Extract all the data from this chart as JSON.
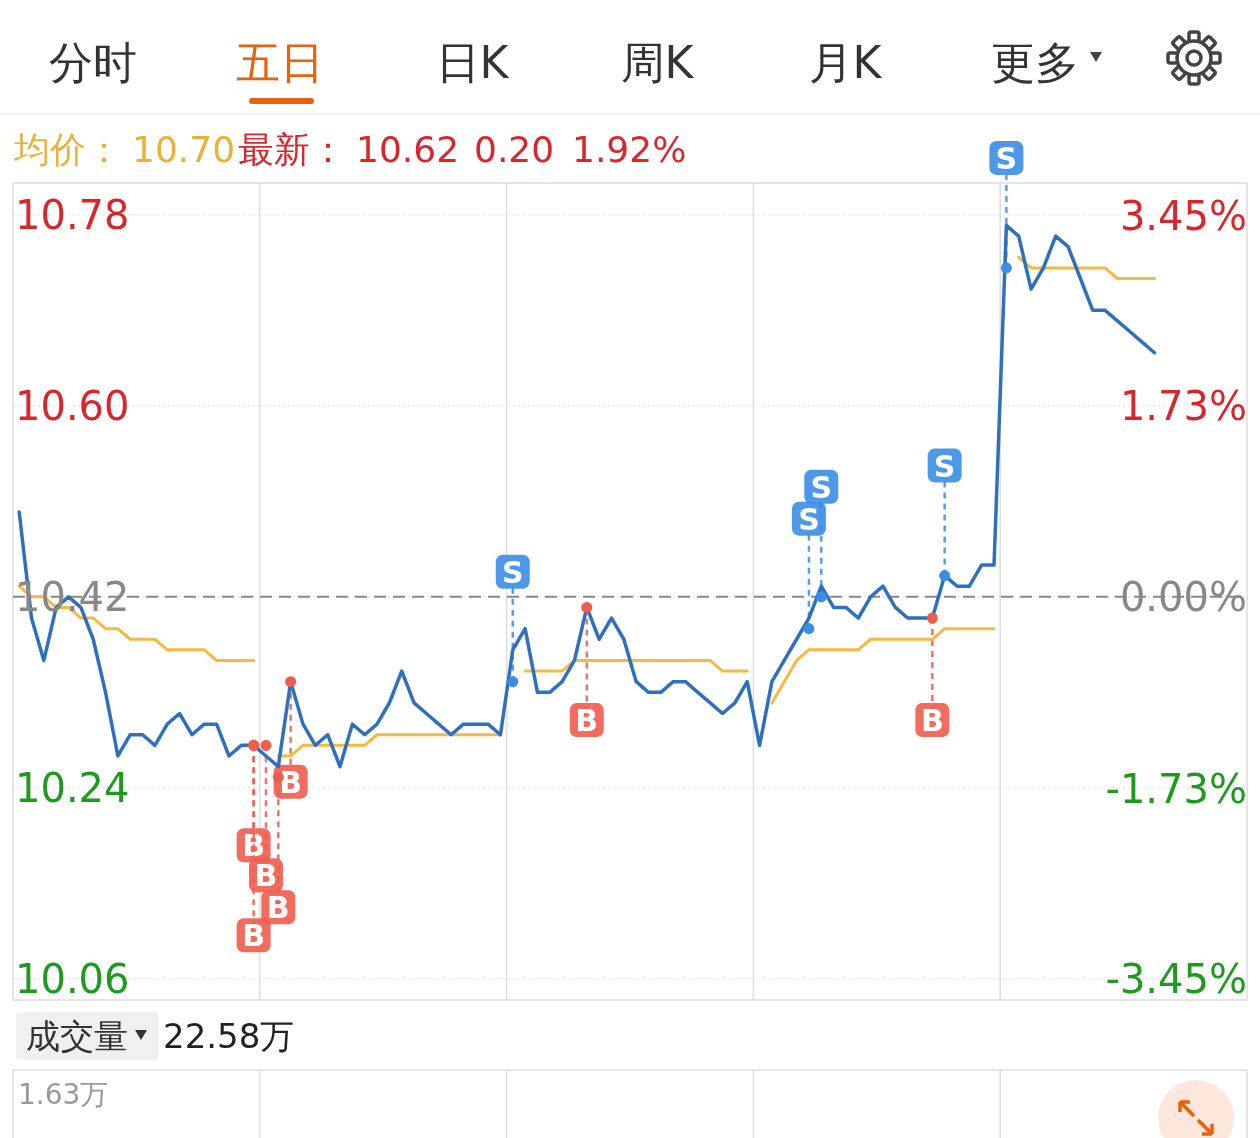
{
  "chart_data": {
    "type": "line",
    "categories": [
      null,
      null,
      null,
      null,
      null,
      null,
      null,
      null,
      null,
      null,
      null,
      null,
      null,
      null,
      null,
      null,
      null,
      null,
      null,
      null,
      null,
      null,
      null,
      null,
      null,
      null,
      null,
      null,
      null,
      null,
      null,
      null,
      null,
      null,
      null,
      null,
      null,
      null,
      null,
      null,
      null,
      null,
      null,
      null,
      null,
      null,
      null,
      null,
      null,
      null,
      null,
      null,
      null,
      null,
      null,
      null,
      null,
      null,
      null,
      null,
      null,
      null,
      null,
      null,
      null,
      null,
      null,
      null,
      null,
      null,
      null,
      null,
      null,
      null,
      null,
      null,
      null,
      null,
      null,
      null,
      null,
      null,
      null,
      null,
      null,
      null,
      null,
      null,
      null,
      null,
      null,
      null,
      null,
      null,
      null,
      null,
      null,
      null,
      null,
      null
    ],
    "series": [
      {
        "color": "#2f6fbf",
        "values": [
          10.5,
          10.4,
          10.36,
          10.41,
          10.42,
          10.41,
          10.38,
          10.33,
          10.27,
          10.29,
          10.29,
          10.28,
          10.3,
          10.31,
          10.29,
          10.3,
          10.3,
          10.27,
          10.28,
          10.28,
          10.27,
          10.26,
          10.34,
          10.3,
          10.28,
          10.29,
          10.26,
          10.3,
          10.29,
          10.3,
          10.32,
          10.35,
          10.32,
          10.31,
          10.3,
          10.29,
          10.3,
          10.3,
          10.3,
          10.29,
          10.37,
          10.39,
          10.33,
          10.33,
          10.34,
          10.36,
          10.41,
          10.38,
          10.4,
          10.38,
          10.34,
          10.33,
          10.33,
          10.34,
          10.34,
          10.33,
          10.32,
          10.31,
          10.32,
          10.34,
          10.28,
          10.34,
          10.36,
          10.38,
          10.4,
          10.43,
          10.41,
          10.41,
          10.4,
          10.42,
          10.43,
          10.41,
          10.4,
          10.4,
          10.4,
          10.44,
          10.43,
          10.43,
          10.45,
          10.45,
          10.77,
          10.76,
          10.71,
          10.73,
          10.76,
          10.75,
          10.72,
          10.69,
          10.69,
          10.68,
          10.67,
          10.66,
          10.65,
          null,
          null,
          null,
          null,
          null,
          null,
          null
        ]
      },
      {
        "color": "#f5b942",
        "values": [
          10.43,
          10.42,
          10.42,
          10.41,
          10.41,
          10.4,
          10.4,
          10.39,
          10.39,
          10.38,
          10.38,
          10.38,
          10.37,
          10.37,
          10.37,
          10.37,
          10.36,
          10.36,
          10.36,
          10.36,
          null,
          10.27,
          10.27,
          10.28,
          10.28,
          10.28,
          10.28,
          10.28,
          10.28,
          10.29,
          10.29,
          10.29,
          10.29,
          10.29,
          10.29,
          10.29,
          10.29,
          10.29,
          10.29,
          10.29,
          null,
          10.35,
          10.35,
          10.35,
          10.35,
          10.36,
          10.36,
          10.36,
          10.36,
          10.36,
          10.36,
          10.36,
          10.36,
          10.36,
          10.36,
          10.36,
          10.36,
          10.35,
          10.35,
          10.35,
          null,
          10.32,
          10.34,
          10.36,
          10.37,
          10.37,
          10.37,
          10.37,
          10.37,
          10.38,
          10.38,
          10.38,
          10.38,
          10.38,
          10.38,
          10.39,
          10.39,
          10.39,
          10.39,
          10.39,
          null,
          10.74,
          10.73,
          10.73,
          10.73,
          10.73,
          10.73,
          10.73,
          10.73,
          10.72,
          10.72,
          10.72,
          10.72,
          null,
          null,
          null,
          null,
          null,
          null,
          null
        ]
      },
      {
        "type": "scatter",
        "color": "#ef5b4c",
        "marker": "circle",
        "values": [
          null,
          null,
          null,
          null,
          null,
          null,
          null,
          null,
          null,
          null,
          null,
          null,
          null,
          null,
          null,
          null,
          null,
          null,
          null,
          10.28,
          10.28,
          10.25,
          10.34,
          null,
          null,
          null,
          null,
          null,
          null,
          null,
          null,
          null,
          null,
          null,
          null,
          null,
          null,
          null,
          null,
          null,
          null,
          null,
          null,
          null,
          null,
          null,
          10.41,
          null,
          null,
          null,
          null,
          null,
          null,
          null,
          null,
          null,
          null,
          null,
          null,
          null,
          null,
          null,
          null,
          null,
          null,
          null,
          null,
          null,
          null,
          null,
          null,
          null,
          null,
          null,
          10.4,
          null,
          null,
          null,
          null,
          null,
          null,
          null,
          null,
          null,
          null,
          null,
          null,
          null,
          null,
          null,
          null,
          null,
          null,
          null,
          null,
          null,
          null,
          null,
          null,
          null
        ],
        "value_labels": [
          null,
          null,
          null,
          null,
          null,
          null,
          null,
          null,
          null,
          null,
          null,
          null,
          null,
          null,
          null,
          null,
          null,
          null,
          null,
          "B",
          "B",
          "B",
          "B",
          null,
          null,
          null,
          null,
          null,
          null,
          null,
          null,
          null,
          null,
          null,
          null,
          null,
          null,
          null,
          null,
          null,
          null,
          null,
          null,
          null,
          null,
          null,
          "B",
          null,
          null,
          null,
          null,
          null,
          null,
          null,
          null,
          null,
          null,
          null,
          null,
          null,
          null,
          null,
          null,
          null,
          null,
          null,
          null,
          null,
          null,
          null,
          null,
          null,
          null,
          null,
          "B",
          null,
          null,
          null,
          null,
          null,
          null,
          null,
          null,
          null,
          null,
          null,
          null,
          null,
          null,
          null,
          null,
          null,
          null,
          null,
          null,
          null,
          null,
          null,
          null,
          null
        ]
      },
      {
        "type": "scatter",
        "color": "#ef5b4c",
        "marker": "circle",
        "values": [
          null,
          null,
          null,
          null,
          null,
          null,
          null,
          null,
          null,
          null,
          null,
          null,
          null,
          null,
          null,
          null,
          null,
          null,
          null,
          10.28,
          null,
          null,
          null,
          null,
          null,
          null,
          null,
          null,
          null,
          null,
          null,
          null,
          null,
          null,
          null,
          null,
          null,
          null,
          null,
          null,
          null,
          null,
          null,
          null,
          null,
          null,
          null,
          null,
          null,
          null,
          null,
          null,
          null,
          null,
          null,
          null,
          null,
          null,
          null,
          null,
          null,
          null,
          null,
          null,
          null,
          null,
          null,
          null,
          null,
          null,
          null,
          null,
          null,
          null,
          null,
          null,
          null,
          null,
          null,
          null,
          null,
          null,
          null,
          null,
          null,
          null,
          null,
          null,
          null,
          null,
          null,
          null,
          null,
          null,
          null,
          null,
          null,
          null,
          null,
          null
        ],
        "value_labels": [
          null,
          null,
          null,
          null,
          null,
          null,
          null,
          null,
          null,
          null,
          null,
          null,
          null,
          null,
          null,
          null,
          null,
          null,
          null,
          "B",
          null,
          null,
          null,
          null,
          null,
          null,
          null,
          null,
          null,
          null,
          null,
          null,
          null,
          null,
          null,
          null,
          null,
          null,
          null,
          null,
          null,
          null,
          null,
          null,
          null,
          null,
          null,
          null,
          null,
          null,
          null,
          null,
          null,
          null,
          null,
          null,
          null,
          null,
          null,
          null,
          null,
          null,
          null,
          null,
          null,
          null,
          null,
          null,
          null,
          null,
          null,
          null,
          null,
          null,
          null,
          null,
          null,
          null,
          null,
          null,
          null,
          null,
          null,
          null,
          null,
          null,
          null,
          null,
          null,
          null,
          null,
          null,
          null,
          null,
          null,
          null,
          null,
          null,
          null,
          null
        ]
      },
      {
        "type": "scatter",
        "color": "#3a8ee6",
        "marker": "circle",
        "values": [
          null,
          null,
          null,
          null,
          null,
          null,
          null,
          null,
          null,
          null,
          null,
          null,
          null,
          null,
          null,
          null,
          null,
          null,
          null,
          null,
          null,
          null,
          null,
          null,
          null,
          null,
          null,
          null,
          null,
          null,
          null,
          null,
          null,
          null,
          null,
          null,
          null,
          null,
          null,
          null,
          10.34,
          null,
          null,
          null,
          null,
          null,
          null,
          null,
          null,
          null,
          null,
          null,
          null,
          null,
          null,
          null,
          null,
          null,
          null,
          null,
          null,
          null,
          null,
          null,
          10.39,
          10.42,
          null,
          null,
          null,
          null,
          null,
          null,
          null,
          null,
          null,
          10.44,
          null,
          null,
          null,
          null,
          10.73,
          null,
          null,
          null,
          null,
          null,
          null,
          null,
          null,
          null,
          null,
          null,
          null,
          null,
          null,
          null,
          null,
          null,
          null,
          null
        ],
        "value_labels": [
          null,
          null,
          null,
          null,
          null,
          null,
          null,
          null,
          null,
          null,
          null,
          null,
          null,
          null,
          null,
          null,
          null,
          null,
          null,
          null,
          null,
          null,
          null,
          null,
          null,
          null,
          null,
          null,
          null,
          null,
          null,
          null,
          null,
          null,
          null,
          null,
          null,
          null,
          null,
          null,
          "S",
          null,
          null,
          null,
          null,
          null,
          null,
          null,
          null,
          null,
          null,
          null,
          null,
          null,
          null,
          null,
          null,
          null,
          null,
          null,
          null,
          null,
          null,
          null,
          "S",
          "S",
          null,
          null,
          null,
          null,
          null,
          null,
          null,
          null,
          null,
          "S",
          null,
          null,
          null,
          null,
          "S",
          null,
          null,
          null,
          null,
          null,
          null,
          null,
          null,
          null,
          null,
          null,
          null,
          null,
          null,
          null,
          null,
          null,
          null,
          null
        ]
      }
    ],
    "ylim": [
      10.04,
      10.81
    ],
    "yticks": [
      {
        "value": 10.06,
        "label": "10.06"
      },
      {
        "value": 10.24,
        "label": "10.24"
      },
      {
        "value": 10.42,
        "label": "10.42"
      },
      {
        "value": 10.6,
        "label": "10.60"
      },
      {
        "value": 10.78,
        "label": "10.78"
      }
    ],
    "y2lim": [
      -3.64,
      3.74
    ],
    "y2ticks": [
      {
        "value": -3.45,
        "label": "-3.45%"
      },
      {
        "value": -1.73,
        "label": "-1.73%"
      },
      {
        "value": 0,
        "label": "0.00%"
      },
      {
        "value": 1.73,
        "label": "1.73%"
      },
      {
        "value": 3.45,
        "label": "3.45%"
      }
    ],
    "tick_labels": "y",
    "grid": true,
    "marker": "none",
    "line_style": "solid",
    "ref_lines": [
      {
        "axis": "y",
        "value": 10.42,
        "color": "#888888",
        "line_style": "dashed"
      }
    ],
    "annotations": [
      "分时",
      "五日",
      "日K",
      "周K",
      "月K",
      "更多",
      "均价：",
      "10.70",
      "最新：",
      "10.62",
      "0.20",
      "1.92%",
      "成交量",
      "22.58万",
      "1.63万"
    ]
  }
}
